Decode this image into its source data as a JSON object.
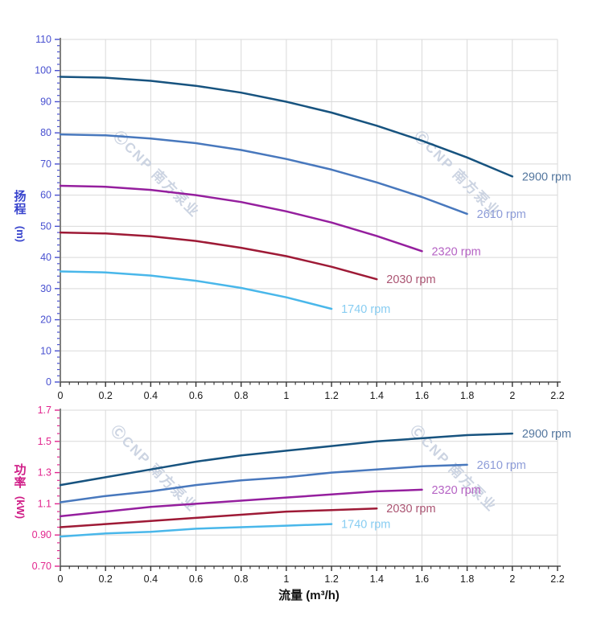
{
  "watermark": {
    "text": "ⒸCNP 南方泵业",
    "color": "#ccd4e2"
  },
  "colors": {
    "grid": "#d9d9d9",
    "axis_line": "#4a4a4a",
    "x_tick": "#333333",
    "x_label": "#1a1a1a"
  },
  "axes": {
    "flow": {
      "title": "流量 (m³/h)",
      "min": 0,
      "max": 2.2,
      "major_step": 0.2,
      "minor_step": 0.04,
      "tick_labels": [
        "0",
        "0.2",
        "0.4",
        "0.6",
        "0.8",
        "1",
        "1.2",
        "1.4",
        "1.6",
        "1.8",
        "2",
        "2.2"
      ]
    }
  },
  "chart_data": [
    {
      "id": "head",
      "type": "line",
      "title": "",
      "xlabel": "流量 (m³/h)",
      "ylabel": "扬程 (m)",
      "xlim": [
        0,
        2.2
      ],
      "ylim": [
        0,
        110
      ],
      "grid": true,
      "legend_position": "right-of-curve-end",
      "y_axis": {
        "min": 0,
        "max": 110,
        "major_step": 10,
        "minor_step": 2,
        "tick_labels": [
          "0",
          "10",
          "20",
          "30",
          "40",
          "50",
          "60",
          "70",
          "80",
          "90",
          "100",
          "110"
        ],
        "color": "#4850d0",
        "title_chars": [
          "扬",
          "程"
        ],
        "unit": "(m)"
      },
      "series": [
        {
          "name": "2900 rpm",
          "color": "#17537f",
          "label_color": "#54779f",
          "x": [
            0,
            0.2,
            0.4,
            0.6,
            0.8,
            1.0,
            1.2,
            1.4,
            1.6,
            1.8,
            2.0
          ],
          "y": [
            98,
            97.7,
            96.7,
            95.1,
            92.9,
            90,
            86.5,
            82.3,
            77.5,
            72.1,
            66
          ]
        },
        {
          "name": "2610 rpm",
          "color": "#4878bd",
          "label_color": "#8d9cd8",
          "x": [
            0,
            0.2,
            0.4,
            0.6,
            0.8,
            1.0,
            1.2,
            1.4,
            1.6,
            1.8
          ],
          "y": [
            79.5,
            79.2,
            78.2,
            76.7,
            74.5,
            71.6,
            68.2,
            64.1,
            59.4,
            54
          ]
        },
        {
          "name": "2320 rpm",
          "color": "#951f9e",
          "label_color": "#b563c4",
          "x": [
            0,
            0.2,
            0.4,
            0.6,
            0.8,
            1.0,
            1.2,
            1.4,
            1.6
          ],
          "y": [
            63,
            62.7,
            61.7,
            60,
            57.8,
            54.8,
            51.2,
            46.9,
            42
          ]
        },
        {
          "name": "2030 rpm",
          "color": "#9e1a36",
          "label_color": "#ab5573",
          "x": [
            0,
            0.2,
            0.4,
            0.6,
            0.8,
            1.0,
            1.2,
            1.4
          ],
          "y": [
            48,
            47.7,
            46.8,
            45.3,
            43.1,
            40.4,
            37,
            33
          ]
        },
        {
          "name": "1740 rpm",
          "color": "#49b7ea",
          "label_color": "#88cdf2",
          "x": [
            0,
            0.2,
            0.4,
            0.6,
            0.8,
            1.0,
            1.2
          ],
          "y": [
            35.5,
            35.2,
            34.2,
            32.5,
            30.2,
            27.2,
            23.5
          ]
        }
      ]
    },
    {
      "id": "power",
      "type": "line",
      "title": "",
      "xlabel": "流量 (m³/h)",
      "ylabel": "功率 (kW)",
      "xlim": [
        0,
        2.2
      ],
      "ylim": [
        0.7,
        1.7
      ],
      "grid": true,
      "legend_position": "right-of-curve-end",
      "y_axis": {
        "min": 0.7,
        "max": 1.7,
        "major_step": 0.2,
        "minor_step": 0.05,
        "tick_labels": [
          "0.70",
          "0.90",
          "1.1",
          "1.3",
          "1.5",
          "1.7"
        ],
        "color": "#e2268e",
        "title_chars": [
          "功",
          "率"
        ],
        "unit": "(kW)"
      },
      "series": [
        {
          "name": "2900 rpm",
          "color": "#17537f",
          "label_color": "#54779f",
          "x": [
            0,
            0.2,
            0.4,
            0.6,
            0.8,
            1.0,
            1.2,
            1.4,
            1.6,
            1.8,
            2.0
          ],
          "y": [
            1.22,
            1.27,
            1.32,
            1.37,
            1.41,
            1.44,
            1.47,
            1.5,
            1.52,
            1.54,
            1.55
          ]
        },
        {
          "name": "2610 rpm",
          "color": "#4878bd",
          "label_color": "#8d9cd8",
          "x": [
            0,
            0.2,
            0.4,
            0.6,
            0.8,
            1.0,
            1.2,
            1.4,
            1.6,
            1.8
          ],
          "y": [
            1.11,
            1.15,
            1.18,
            1.22,
            1.25,
            1.27,
            1.3,
            1.32,
            1.34,
            1.35
          ]
        },
        {
          "name": "2320 rpm",
          "color": "#951f9e",
          "label_color": "#b563c4",
          "x": [
            0,
            0.2,
            0.4,
            0.6,
            0.8,
            1.0,
            1.2,
            1.4,
            1.6
          ],
          "y": [
            1.02,
            1.05,
            1.08,
            1.1,
            1.12,
            1.14,
            1.16,
            1.18,
            1.19
          ]
        },
        {
          "name": "2030 rpm",
          "color": "#9e1a36",
          "label_color": "#ab5573",
          "x": [
            0,
            0.2,
            0.4,
            0.6,
            0.8,
            1.0,
            1.2,
            1.4
          ],
          "y": [
            0.95,
            0.97,
            0.99,
            1.01,
            1.03,
            1.05,
            1.06,
            1.07
          ]
        },
        {
          "name": "1740 rpm",
          "color": "#49b7ea",
          "label_color": "#88cdf2",
          "x": [
            0,
            0.2,
            0.4,
            0.6,
            0.8,
            1.0,
            1.2
          ],
          "y": [
            0.89,
            0.91,
            0.92,
            0.94,
            0.95,
            0.96,
            0.97
          ]
        }
      ]
    }
  ]
}
